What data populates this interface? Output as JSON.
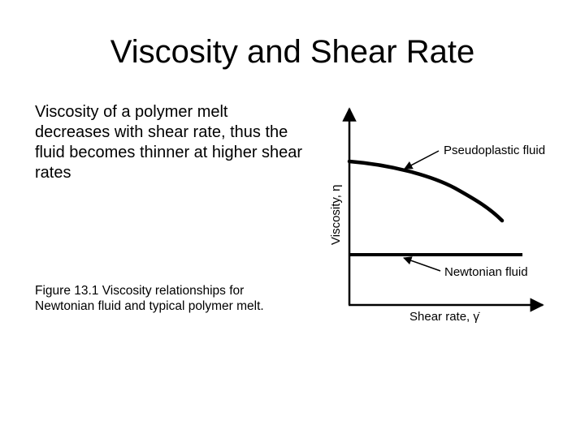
{
  "slide": {
    "title": "Viscosity and Shear Rate",
    "body": "Viscosity of a polymer melt decreases with shear rate, thus the fluid becomes thinner at higher shear rates",
    "caption": "Figure 13.1 Viscosity relationships for Newtonian fluid and typical polymer melt."
  },
  "figure": {
    "y_axis_label": "Viscosity, η",
    "x_axis_label": "Shear rate, γ̇",
    "pseudoplastic_label": "Pseudoplastic fluid",
    "newtonian_label": "Newtonian fluid"
  }
}
